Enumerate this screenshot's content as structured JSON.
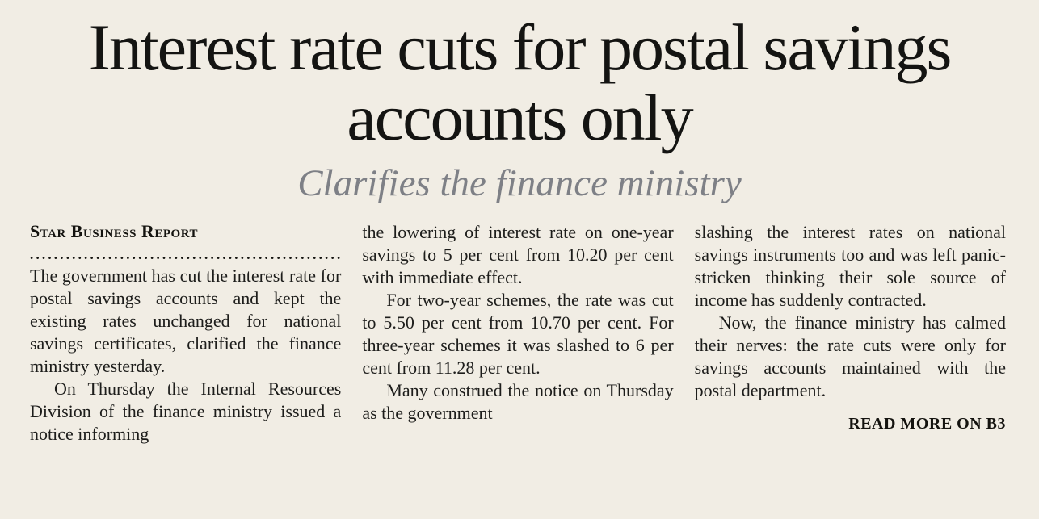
{
  "article": {
    "headline": "Interest rate cuts for postal savings accounts only",
    "subheadline": "Clarifies the finance ministry",
    "byline": "Star Business Report",
    "separator_dots": "...........................................................................",
    "columns": {
      "col1": {
        "para1": "The government has cut the interest rate for postal savings accounts and kept the existing rates unchanged for national savings certificates, clarified the finance ministry yesterday.",
        "para2": "On Thursday the Internal Resources Division of the finance ministry issued a notice informing"
      },
      "col2": {
        "para1": "the lowering of interest rate on one-year savings to 5 per cent from 10.20 per cent with immediate effect.",
        "para2": "For two-year schemes, the rate was cut to 5.50 per cent from 10.70 per cent. For three-year schemes it was slashed to 6 per cent from 11.28 per cent.",
        "para3": "Many construed the notice on Thursday as the government"
      },
      "col3": {
        "para1": "slashing the interest rates on national savings instruments too and was left panic-stricken thinking their sole source of income has suddenly contracted.",
        "para2": "Now, the finance ministry has calmed their nerves: the rate cuts were only for savings accounts maintained with the postal department.",
        "read_more": "READ MORE ON B3"
      }
    },
    "colors": {
      "background": "#f1ede4",
      "headline": "#141412",
      "subheadline": "#7e8086",
      "body": "#1d1d1b"
    }
  }
}
